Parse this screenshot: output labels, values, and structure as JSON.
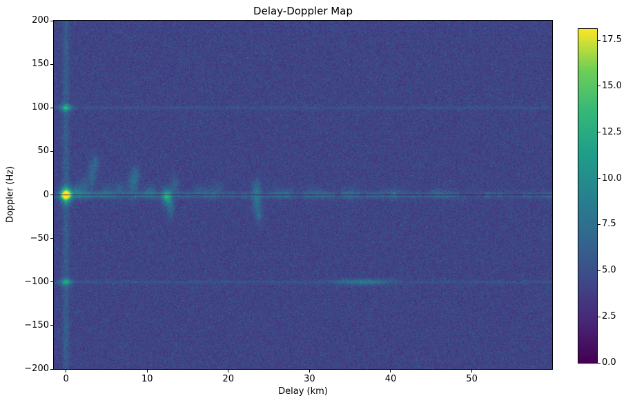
{
  "figure": {
    "background": "#ffffff"
  },
  "chart_data": {
    "type": "heatmap",
    "title": "Delay-Doppler Map",
    "xlabel": "Delay (km)",
    "ylabel": "Doppler (Hz)",
    "x_range": [
      -1.5,
      59.9
    ],
    "y_range": [
      -200,
      200
    ],
    "x_ticks": [
      0,
      10,
      20,
      30,
      40,
      50
    ],
    "y_ticks": [
      200,
      150,
      100,
      50,
      0,
      -50,
      -100,
      -150,
      -200
    ],
    "colormap": "viridis",
    "value_range": [
      0,
      18.1
    ],
    "colorbar_ticks": [
      0.0,
      2.5,
      5.0,
      7.5,
      10.0,
      12.5,
      15.0,
      17.5
    ],
    "legend": "colorbar-right",
    "grid": false,
    "noise": {
      "mean": 4.2,
      "std": 0.85,
      "speckle_prob": 0.007,
      "speckle_amp": 2.2
    },
    "features": [
      {
        "kind": "band",
        "doppler": 0,
        "sigma_hz": 2.4,
        "amp_near": 3.4,
        "amp_far": 2.1,
        "decay_km": 14,
        "patchiness": 0.9
      },
      {
        "kind": "blob",
        "delay": 0,
        "doppler": 0,
        "sigma_km": 0.45,
        "sigma_hz": 6,
        "amp": 14
      },
      {
        "kind": "vline",
        "delay": 0,
        "sigma_km": 0.28,
        "amp": 1.8
      },
      {
        "kind": "blob",
        "delay": 0,
        "doppler": 100,
        "sigma_km": 0.5,
        "sigma_hz": 3,
        "amp": 6.5
      },
      {
        "kind": "blob",
        "delay": 0,
        "doppler": -100,
        "sigma_km": 0.5,
        "sigma_hz": 3,
        "amp": 5.5
      },
      {
        "kind": "hline",
        "doppler": 100,
        "sigma_hz": 1.3,
        "amp": 1.1
      },
      {
        "kind": "hline",
        "doppler": -100,
        "sigma_hz": 1.3,
        "amp": 1.1
      },
      {
        "kind": "blob",
        "delay": 1.3,
        "doppler": 3,
        "sigma_km": 0.5,
        "sigma_hz": 5,
        "amp": 3.5
      },
      {
        "kind": "blob",
        "delay": 2.2,
        "doppler": 10,
        "sigma_km": 0.4,
        "sigma_hz": 7,
        "amp": 2.2
      },
      {
        "kind": "blob",
        "delay": 3.2,
        "doppler": 22,
        "sigma_km": 0.35,
        "sigma_hz": 12,
        "amp": 2.4
      },
      {
        "kind": "blob",
        "delay": 3.7,
        "doppler": 36,
        "sigma_km": 0.3,
        "sigma_hz": 6,
        "amp": 2.0
      },
      {
        "kind": "blob",
        "delay": 5.0,
        "doppler": 4,
        "sigma_km": 0.5,
        "sigma_hz": 5,
        "amp": 2.0
      },
      {
        "kind": "blob",
        "delay": 6.6,
        "doppler": 6,
        "sigma_km": 0.5,
        "sigma_hz": 6,
        "amp": 2.0
      },
      {
        "kind": "blob",
        "delay": 8.2,
        "doppler": 12,
        "sigma_km": 0.4,
        "sigma_hz": 11,
        "amp": 2.8
      },
      {
        "kind": "blob",
        "delay": 8.7,
        "doppler": 24,
        "sigma_km": 0.3,
        "sigma_hz": 7,
        "amp": 2.0
      },
      {
        "kind": "blob",
        "delay": 10.4,
        "doppler": 4,
        "sigma_km": 0.5,
        "sigma_hz": 5,
        "amp": 2.3
      },
      {
        "kind": "blob",
        "delay": 12.4,
        "doppler": -2,
        "sigma_km": 0.4,
        "sigma_hz": 6,
        "amp": 7.5
      },
      {
        "kind": "blob",
        "delay": 12.9,
        "doppler": -16,
        "sigma_km": 0.3,
        "sigma_hz": 8,
        "amp": 2.8
      },
      {
        "kind": "blob",
        "delay": 13.4,
        "doppler": 10,
        "sigma_km": 0.4,
        "sigma_hz": 7,
        "amp": 2.0
      },
      {
        "kind": "blob",
        "delay": 16.6,
        "doppler": 4,
        "sigma_km": 0.6,
        "sigma_hz": 5,
        "amp": 1.7
      },
      {
        "kind": "blob",
        "delay": 18.6,
        "doppler": 5,
        "sigma_km": 0.6,
        "sigma_hz": 6,
        "amp": 1.6
      },
      {
        "kind": "blob",
        "delay": 23.5,
        "doppler": -6,
        "sigma_km": 0.4,
        "sigma_hz": 11,
        "amp": 3.2
      },
      {
        "kind": "blob",
        "delay": 23.8,
        "doppler": -23,
        "sigma_km": 0.3,
        "sigma_hz": 6,
        "amp": 2.2
      },
      {
        "kind": "blob",
        "delay": 23.5,
        "doppler": 9,
        "sigma_km": 0.4,
        "sigma_hz": 6,
        "amp": 1.8
      },
      {
        "kind": "blob",
        "delay": 26.6,
        "doppler": 2,
        "sigma_km": 0.8,
        "sigma_hz": 5,
        "amp": 1.4
      },
      {
        "kind": "blob",
        "delay": 30.6,
        "doppler": 2,
        "sigma_km": 0.8,
        "sigma_hz": 5,
        "amp": 1.5
      },
      {
        "kind": "blob",
        "delay": 36.6,
        "doppler": -100,
        "sigma_km": 2.2,
        "sigma_hz": 2.6,
        "amp": 3.2
      },
      {
        "kind": "blob",
        "delay": 35.2,
        "doppler": 2,
        "sigma_km": 1.0,
        "sigma_hz": 5,
        "amp": 1.3
      },
      {
        "kind": "blob",
        "delay": 40.5,
        "doppler": 2,
        "sigma_km": 1.0,
        "sigma_hz": 5,
        "amp": 1.1
      },
      {
        "kind": "blob",
        "delay": 46.0,
        "doppler": 2,
        "sigma_km": 1.0,
        "sigma_hz": 5,
        "amp": 1.1
      },
      {
        "kind": "darkline",
        "doppler": 0,
        "half_width_hz": 0.55,
        "level": 0.9
      }
    ]
  }
}
